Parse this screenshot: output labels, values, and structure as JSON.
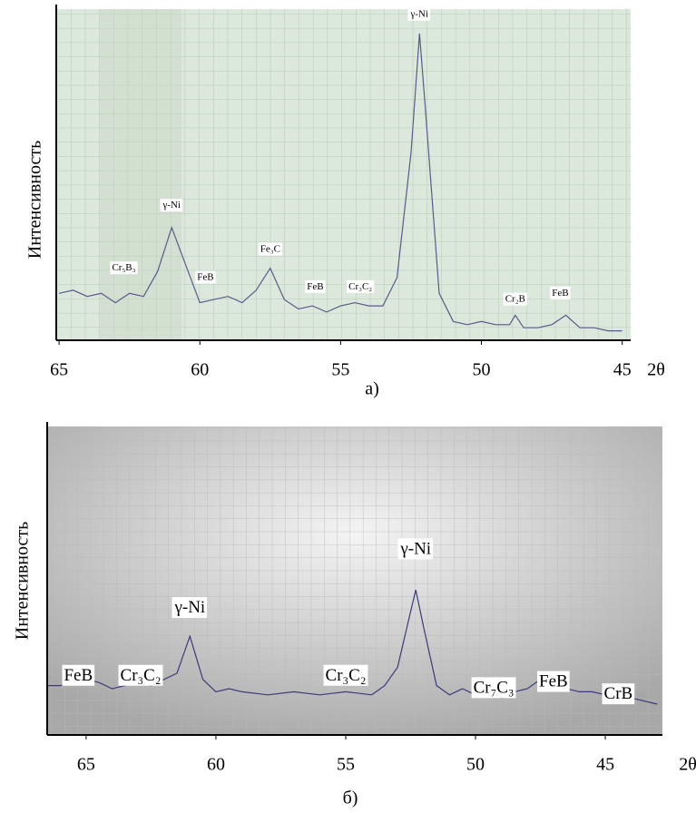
{
  "chart_data": [
    {
      "type": "line",
      "caption": "а)",
      "xlabel": "2θ",
      "ylabel": "Интенсивность",
      "xlim": [
        65.1,
        44.7
      ],
      "xticks": [
        65,
        60,
        55,
        50,
        45
      ],
      "ylim": [
        0,
        100
      ],
      "x": [
        65,
        64.5,
        64,
        63.5,
        63,
        62.5,
        62,
        61.5,
        61,
        60.5,
        60,
        59.5,
        59,
        58.5,
        58,
        57.5,
        57,
        56.5,
        56,
        55.5,
        55,
        54.5,
        54,
        53.5,
        53,
        52.5,
        52.2,
        52,
        51.5,
        51,
        50.5,
        50,
        49.5,
        49,
        48.8,
        48.5,
        48,
        47.5,
        47,
        46.5,
        46,
        45.5,
        45
      ],
      "series": [
        {
          "color": "#5a5a8a",
          "values": [
            15,
            16,
            14,
            15,
            12,
            15,
            14,
            22,
            36,
            24,
            12,
            13,
            14,
            12,
            16,
            23,
            13,
            10,
            11,
            9,
            11,
            12,
            11,
            11,
            20,
            60,
            98,
            75,
            15,
            6,
            5,
            6,
            5,
            5,
            8,
            4,
            4,
            5,
            8,
            4,
            4,
            3,
            3
          ]
        }
      ],
      "annotations": [
        {
          "text": "Cr₅B₃",
          "x": 62.7,
          "y": 23
        },
        {
          "text": "γ-Ni",
          "x": 61,
          "y": 43
        },
        {
          "text": "FeB",
          "x": 59.8,
          "y": 20
        },
        {
          "text": "Fe₃C",
          "x": 57.5,
          "y": 29
        },
        {
          "text": "FeB",
          "x": 55.9,
          "y": 17
        },
        {
          "text": "Cr₃C₂",
          "x": 54.3,
          "y": 17
        },
        {
          "text": "γ-Ni",
          "x": 52.2,
          "y": 104
        },
        {
          "text": "Cr₂B",
          "x": 48.8,
          "y": 13
        },
        {
          "text": "FeB",
          "x": 47.2,
          "y": 15
        }
      ]
    },
    {
      "type": "line",
      "caption": "б)",
      "xlabel": "2θ",
      "ylabel": "Интенсивность",
      "xlim": [
        66.5,
        42.8
      ],
      "xticks": [
        65,
        60,
        55,
        50,
        45
      ],
      "ylim": [
        0,
        100
      ],
      "x": [
        66.5,
        66,
        65.5,
        65,
        64.5,
        64,
        63.5,
        63,
        62.5,
        62,
        61.5,
        61,
        60.5,
        60,
        59.5,
        59,
        58,
        57,
        56,
        55,
        54,
        53.5,
        53,
        52.5,
        52.3,
        52,
        51.5,
        51,
        50.5,
        50,
        49.5,
        49,
        48.5,
        48,
        47.5,
        47,
        46.5,
        46,
        45.5,
        45,
        44,
        43
      ],
      "series": [
        {
          "color": "#3a3a7a",
          "values": [
            16,
            16,
            17,
            18,
            17,
            15,
            16,
            17,
            16,
            18,
            20,
            32,
            18,
            14,
            15,
            14,
            13,
            14,
            13,
            14,
            13,
            16,
            22,
            40,
            47,
            35,
            16,
            13,
            15,
            13,
            16,
            12,
            14,
            15,
            18,
            18,
            15,
            14,
            14,
            13,
            12,
            10
          ]
        }
      ],
      "annotations": [
        {
          "text": "FeB",
          "x": 65.3,
          "y": 19
        },
        {
          "text": "Cr₃C₂",
          "x": 62.9,
          "y": 19
        },
        {
          "text": "γ-Ni",
          "x": 61,
          "y": 41
        },
        {
          "text": "Cr₃C₂",
          "x": 55,
          "y": 19
        },
        {
          "text": "γ-Ni",
          "x": 52.3,
          "y": 60
        },
        {
          "text": "Cr₇C₃",
          "x": 49.3,
          "y": 15
        },
        {
          "text": "FeB",
          "x": 47,
          "y": 17
        },
        {
          "text": "CrB",
          "x": 44.5,
          "y": 13
        }
      ]
    }
  ]
}
